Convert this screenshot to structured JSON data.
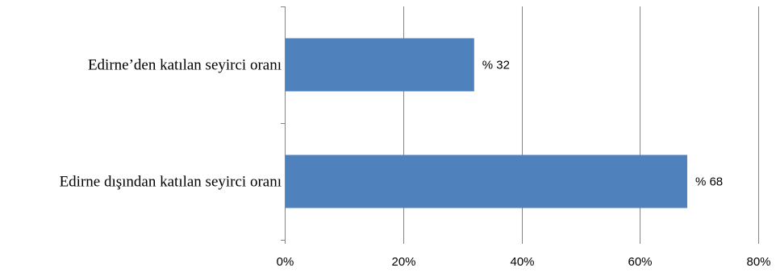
{
  "chart_data": {
    "type": "bar",
    "orientation": "horizontal",
    "categories": [
      "Edirne’den katılan seyirci oranı",
      "Edirne dışından katılan seyirci oranı"
    ],
    "values": [
      32,
      68
    ],
    "data_labels": [
      "% 32",
      "% 68"
    ],
    "xlim": [
      0,
      80
    ],
    "x_ticks": [
      0,
      20,
      40,
      60,
      80
    ],
    "x_tick_labels": [
      "0%",
      "20%",
      "40%",
      "60%",
      "80%"
    ],
    "grid": true,
    "bar_color": "#4F81BD",
    "grid_color": "#868686"
  }
}
